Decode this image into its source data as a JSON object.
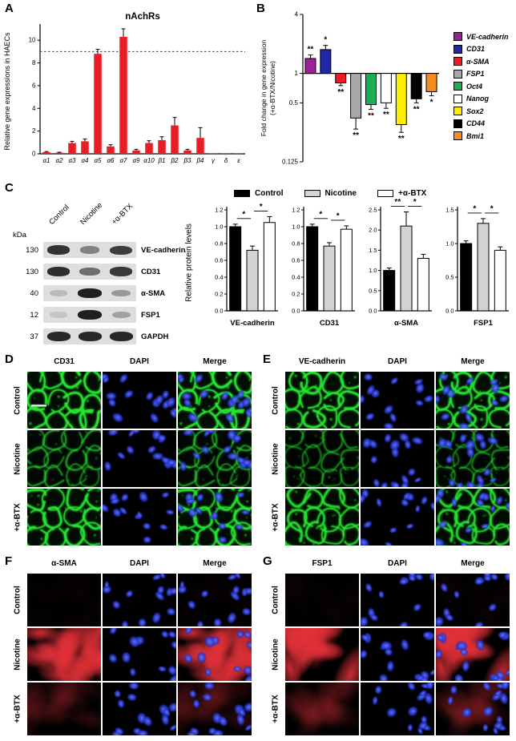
{
  "panels": {
    "A": {
      "label": "A"
    },
    "B": {
      "label": "B"
    },
    "C": {
      "label": "C",
      "shared_ylabel": "Relative protein levels",
      "bar_colors": [
        "#000000",
        "#d3d3d3",
        "#ffffff"
      ],
      "blot": {
        "kda_header": "kDa",
        "lanes": [
          "Control",
          "Nicotine",
          "+α-BTX"
        ],
        "rows": [
          {
            "kda": "130",
            "protein": "VE-cadherin",
            "band_intensities": [
              0.85,
              0.45,
              0.8
            ]
          },
          {
            "kda": "130",
            "protein": "CD31",
            "band_intensities": [
              0.88,
              0.55,
              0.82
            ]
          },
          {
            "kda": "40",
            "protein": "α-SMA",
            "band_intensities": [
              0.18,
              0.95,
              0.35
            ]
          },
          {
            "kda": "12",
            "protein": "FSP1",
            "band_intensities": [
              0.12,
              0.95,
              0.3
            ]
          },
          {
            "kda": "37",
            "protein": "GAPDH",
            "band_intensities": [
              0.9,
              0.9,
              0.9
            ]
          }
        ]
      }
    },
    "D": {
      "label": "D",
      "columns": [
        "CD31",
        "DAPI",
        "Merge"
      ],
      "stain": "junction",
      "color": "#27e833",
      "scale_bar": true,
      "rows": [
        {
          "label": "Control",
          "signal_intensity": 0.95
        },
        {
          "label": "Nicotine",
          "signal_intensity": 0.5
        },
        {
          "label": "+α-BTX",
          "signal_intensity": 0.88
        }
      ]
    },
    "E": {
      "label": "E",
      "columns": [
        "VE-cadherin",
        "DAPI",
        "Merge"
      ],
      "stain": "junction",
      "color": "#27e833",
      "scale_bar": false,
      "rows": [
        {
          "label": "Control",
          "signal_intensity": 0.9
        },
        {
          "label": "Nicotine",
          "signal_intensity": 0.42
        },
        {
          "label": "+α-BTX",
          "signal_intensity": 0.8
        }
      ]
    },
    "F": {
      "label": "F",
      "columns": [
        "α-SMA",
        "DAPI",
        "Merge"
      ],
      "stain": "cytoplasm",
      "color": "#e03038",
      "scale_bar": false,
      "rows": [
        {
          "label": "Control",
          "signal_intensity": 0.03
        },
        {
          "label": "Nicotine",
          "signal_intensity": 0.95
        },
        {
          "label": "+α-BTX",
          "signal_intensity": 0.2
        }
      ]
    },
    "G": {
      "label": "G",
      "columns": [
        "FSP1",
        "DAPI",
        "Merge"
      ],
      "stain": "cytoplasm",
      "color": "#e03038",
      "scale_bar": false,
      "rows": [
        {
          "label": "Control",
          "signal_intensity": 0.03
        },
        {
          "label": "Nicotine",
          "signal_intensity": 0.95
        },
        {
          "label": "+α-BTX",
          "signal_intensity": 0.22
        }
      ]
    }
  },
  "chart_data": {
    "nachrs": {
      "type": "bar",
      "title": "nAchRs",
      "ylabel": "Relative gene expressions in HAECs",
      "categories": [
        "α1",
        "α2",
        "α3",
        "α4",
        "α5",
        "α6",
        "α7",
        "α9",
        "α10",
        "β1",
        "β2",
        "β3",
        "β4",
        "γ",
        "δ",
        "ε"
      ],
      "values": [
        0.15,
        0.1,
        0.95,
        1.1,
        8.8,
        0.65,
        10.3,
        0.3,
        0.95,
        1.2,
        2.5,
        0.3,
        1.4,
        0.05,
        0.05,
        0.05
      ],
      "errors": [
        0.05,
        0.04,
        0.15,
        0.2,
        0.4,
        0.15,
        0.7,
        0.1,
        0.2,
        0.3,
        0.7,
        0.1,
        0.9,
        0.02,
        0.02,
        0.02
      ],
      "bar_color": "#ec1c24",
      "dashed_line_y": 9,
      "ylim": [
        0,
        11
      ],
      "yticks": [
        0,
        2,
        4,
        6,
        8,
        10
      ],
      "grid": false
    },
    "fold_change": {
      "type": "bar",
      "scale": "log2",
      "ylabel_lines": [
        "Fold change in gene expression",
        "(+α-BTX/Nicotine)"
      ],
      "categories": [
        "VE-cadherin",
        "CD31",
        "α-SMA",
        "FSP1",
        "Oct4",
        "Nanog",
        "Sox2",
        "CD44",
        "Bmi1"
      ],
      "values": [
        1.42,
        1.75,
        0.8,
        0.35,
        0.48,
        0.5,
        0.3,
        0.55,
        0.65
      ],
      "errors": [
        0.12,
        0.18,
        0.05,
        0.08,
        0.05,
        0.06,
        0.05,
        0.05,
        0.06
      ],
      "sig": [
        "**",
        "*",
        "**",
        "**",
        "**",
        "**",
        "**",
        "**",
        "*"
      ],
      "colors": [
        "#9c1f97",
        "#2125aa",
        "#ed1c24",
        "#a7a9ac",
        "#1aaf54",
        "#ffffff",
        "#fdee00",
        "#000000",
        "#f68b1f"
      ],
      "baseline": 1,
      "ylim": [
        0.125,
        4
      ],
      "yticks": [
        4,
        1,
        0.5,
        0.125
      ],
      "legend_position": "right",
      "legend_italic": true
    },
    "protein_levels": [
      {
        "type": "bar",
        "name": "VE-cadherin",
        "categories": [
          "Control",
          "Nicotine",
          "+α-BTX"
        ],
        "values": [
          1.0,
          0.72,
          1.05
        ],
        "errors": [
          0.03,
          0.05,
          0.07
        ],
        "ylim": [
          0,
          1.2
        ],
        "yticks": [
          0,
          0.2,
          0.4,
          0.6,
          0.8,
          1.0,
          1.2
        ],
        "sig": [
          "*",
          "*"
        ]
      },
      {
        "type": "bar",
        "name": "CD31",
        "categories": [
          "Control",
          "Nicotine",
          "+α-BTX"
        ],
        "values": [
          1.0,
          0.77,
          0.97
        ],
        "errors": [
          0.03,
          0.04,
          0.04
        ],
        "ylim": [
          0,
          1.2
        ],
        "yticks": [
          0,
          0.2,
          0.4,
          0.6,
          0.8,
          1.0,
          1.2
        ],
        "sig": [
          "*",
          "*"
        ]
      },
      {
        "type": "bar",
        "name": "α-SMA",
        "categories": [
          "Control",
          "Nicotine",
          "+α-BTX"
        ],
        "values": [
          1.0,
          2.1,
          1.3
        ],
        "errors": [
          0.06,
          0.35,
          0.1
        ],
        "ylim": [
          0,
          2.5
        ],
        "yticks": [
          0,
          0.5,
          1.0,
          1.5,
          2.0,
          2.5
        ],
        "sig": [
          "**",
          "*"
        ]
      },
      {
        "type": "bar",
        "name": "FSP1",
        "categories": [
          "Control",
          "Nicotine",
          "+α-BTX"
        ],
        "values": [
          1.0,
          1.3,
          0.9
        ],
        "errors": [
          0.04,
          0.07,
          0.05
        ],
        "ylim": [
          0,
          1.5
        ],
        "yticks": [
          0,
          0.5,
          1.0,
          1.5
        ],
        "sig": [
          "*",
          "*"
        ]
      }
    ]
  }
}
